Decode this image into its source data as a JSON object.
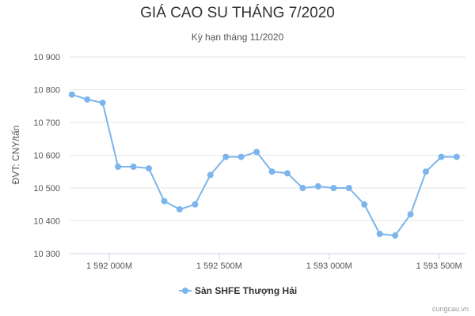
{
  "chart_data": {
    "type": "line",
    "title": "GIÁ CAO SU THÁNG 7/2020",
    "subtitle": "Kỳ hạn tháng 11/2020",
    "ylabel": "ĐVT: CNY/tấn",
    "xlabel": "",
    "ylim": [
      10300,
      10900
    ],
    "y_ticks": [
      10300,
      10400,
      10500,
      10600,
      10700,
      10800,
      10900
    ],
    "y_tick_labels": [
      "10 300",
      "10 400",
      "10 500",
      "10 600",
      "10 700",
      "10 800",
      "10 900"
    ],
    "x_ticks": [
      1592000000,
      1592500000,
      1593000000,
      1593500000
    ],
    "x_tick_labels": [
      "1 592 000M",
      "1 592 500M",
      "1 593 000M",
      "1 593 500M"
    ],
    "xlim": [
      1591820000,
      1593620000
    ],
    "grid": true,
    "legend_position": "bottom",
    "series": [
      {
        "name": "Sàn SHFE Thượng Hải",
        "color": "#7cb5ec",
        "x": [
          1591830000,
          1591900000,
          1591970000,
          1592040000,
          1592110000,
          1592180000,
          1592250000,
          1592320000,
          1592390000,
          1592460000,
          1592530000,
          1592600000,
          1592670000,
          1592740000,
          1592810000,
          1592880000,
          1592950000,
          1593020000,
          1593090000,
          1593160000,
          1593230000,
          1593300000,
          1593370000,
          1593440000,
          1593510000,
          1593580000
        ],
        "values": [
          10785,
          10770,
          10760,
          10565,
          10565,
          10560,
          10460,
          10435,
          10450,
          10540,
          10595,
          10595,
          10610,
          10550,
          10545,
          10500,
          10505,
          10500,
          10500,
          10450,
          10360,
          10355,
          10420,
          10550,
          10595,
          10595
        ]
      }
    ]
  },
  "credit": "cungcau.vn"
}
